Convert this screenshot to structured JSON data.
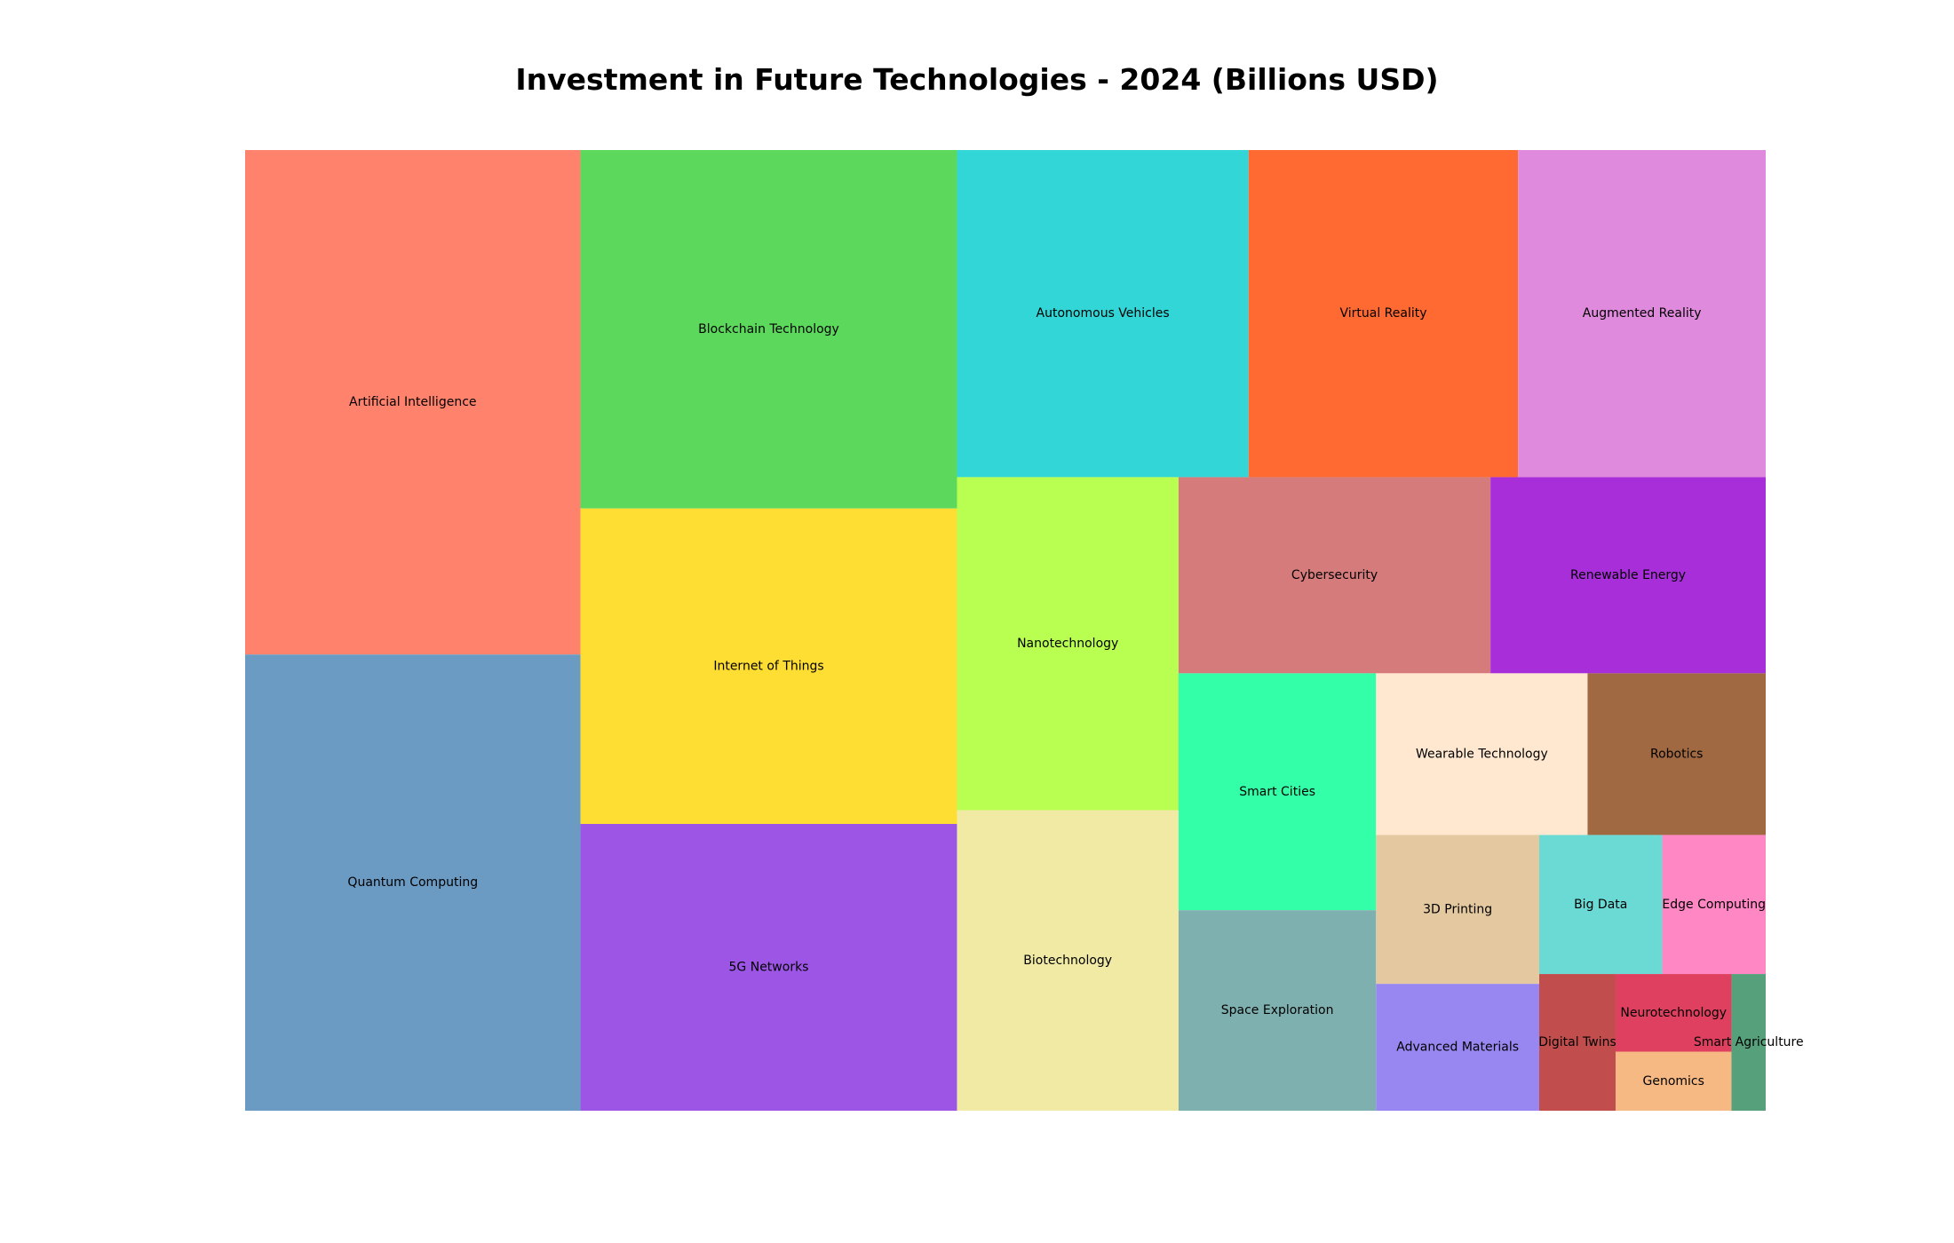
{
  "chart_data": {
    "type": "treemap",
    "title": "Investment in Future Technologies - 2024 (Billions USD)",
    "items": [
      {
        "label": "Artificial Intelligence",
        "value": 94,
        "color": "#ff826c"
      },
      {
        "label": "Quantum Computing",
        "value": 85,
        "color": "#6b9bc3"
      },
      {
        "label": "Blockchain Technology",
        "value": 75,
        "color": "#5cd95c"
      },
      {
        "label": "Internet of Things",
        "value": 66,
        "color": "#ffde33"
      },
      {
        "label": "5G Networks",
        "value": 60,
        "color": "#9d55e5"
      },
      {
        "label": "Autonomous Vehicles",
        "value": 53,
        "color": "#33d6d6"
      },
      {
        "label": "Virtual Reality",
        "value": 49,
        "color": "#ff6932"
      },
      {
        "label": "Augmented Reality",
        "value": 45,
        "color": "#e08add"
      },
      {
        "label": "Nanotechnology",
        "value": 41,
        "color": "#b9ff52"
      },
      {
        "label": "Biotechnology",
        "value": 37,
        "color": "#f1eaa5"
      },
      {
        "label": "Cybersecurity",
        "value": 34,
        "color": "#d67b7b"
      },
      {
        "label": "Renewable Energy",
        "value": 30,
        "color": "#a72ed9"
      },
      {
        "label": "Smart Cities",
        "value": 26,
        "color": "#33ffa8"
      },
      {
        "label": "Space Exploration",
        "value": 22,
        "color": "#7fb0b0"
      },
      {
        "label": "Wearable Technology",
        "value": 19,
        "color": "#ffe8cf"
      },
      {
        "label": "Robotics",
        "value": 16,
        "color": "#a06942"
      },
      {
        "label": "3D Printing",
        "value": 13.5,
        "color": "#e3c8a0"
      },
      {
        "label": "Advanced Materials",
        "value": 11.5,
        "color": "#9887f1"
      },
      {
        "label": "Big Data",
        "value": 9.5,
        "color": "#6cdad4"
      },
      {
        "label": "Edge Computing",
        "value": 8,
        "color": "#ff87c3"
      },
      {
        "label": "Digital Twins",
        "value": 5.8,
        "color": "#c24d4d"
      },
      {
        "label": "Neurotechnology",
        "value": 5,
        "color": "#df405f"
      },
      {
        "label": "Genomics",
        "value": 3.8,
        "color": "#f7b984"
      },
      {
        "label": "Smart Agriculture",
        "value": 2.6,
        "color": "#56a07c"
      }
    ]
  }
}
